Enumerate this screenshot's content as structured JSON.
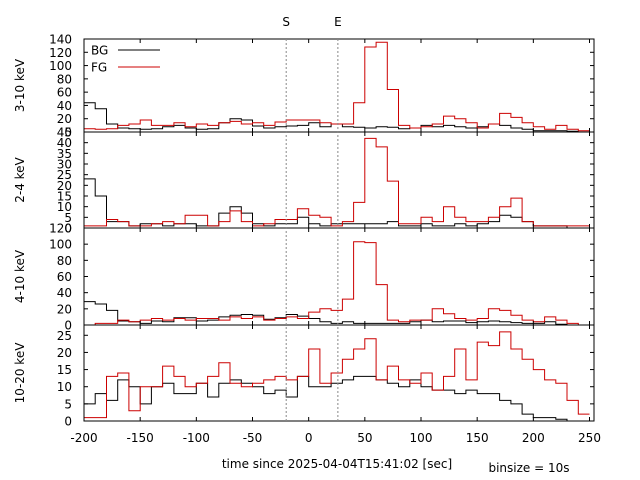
{
  "chart_data": {
    "type": "line",
    "style": "step",
    "shared_x": {
      "label": "time since 2025-04-04T15:41:02 [sec]",
      "ticks": [
        -200,
        -150,
        -100,
        -50,
        0,
        50,
        100,
        150,
        200,
        250
      ],
      "xlim": [
        -200,
        254
      ],
      "grid": false
    },
    "binsize_label": "binsize = 10s",
    "markers": [
      {
        "label": "S",
        "x": -20
      },
      {
        "label": "E",
        "x": 26
      }
    ],
    "legend": {
      "placement": "top-left",
      "entries": [
        "BG",
        "FG"
      ]
    },
    "colors": {
      "BG": "#000000",
      "FG": "#cc0000"
    },
    "panels": [
      {
        "ylabel": "3-10 keV",
        "ylim": [
          0,
          140
        ],
        "yticks": [
          0,
          20,
          40,
          60,
          80,
          100,
          120,
          140
        ],
        "x": [
          -200,
          -190,
          -180,
          -170,
          -160,
          -150,
          -140,
          -130,
          -120,
          -110,
          -100,
          -90,
          -80,
          -70,
          -60,
          -50,
          -40,
          -30,
          -20,
          -10,
          0,
          10,
          20,
          30,
          40,
          50,
          60,
          70,
          80,
          90,
          100,
          110,
          120,
          130,
          140,
          150,
          160,
          170,
          180,
          190,
          200,
          210,
          220,
          230,
          240
        ],
        "series": [
          {
            "name": "BG",
            "values": [
              44,
              35,
              12,
              6,
              5,
              4,
              5,
              8,
              10,
              6,
              4,
              5,
              14,
              20,
              18,
              9,
              6,
              8,
              9,
              10,
              14,
              8,
              12,
              8,
              7,
              6,
              8,
              7,
              5,
              6,
              10,
              8,
              10,
              8,
              6,
              8,
              12,
              10,
              6,
              4,
              2,
              2,
              2,
              1,
              0
            ]
          },
          {
            "name": "FG",
            "values": [
              5,
              4,
              5,
              10,
              12,
              18,
              10,
              10,
              14,
              8,
              12,
              10,
              14,
              16,
              12,
              14,
              10,
              15,
              18,
              18,
              18,
              14,
              12,
              12,
              44,
              128,
              135,
              64,
              10,
              6,
              8,
              12,
              24,
              20,
              14,
              6,
              12,
              28,
              22,
              14,
              8,
              4,
              10,
              4,
              2
            ]
          }
        ]
      },
      {
        "ylabel": "2-4 keV",
        "ylim": [
          0,
          45
        ],
        "yticks": [
          0,
          5,
          10,
          15,
          20,
          25,
          30,
          35,
          40,
          45
        ],
        "x": [
          -200,
          -190,
          -180,
          -170,
          -160,
          -150,
          -140,
          -130,
          -120,
          -110,
          -100,
          -90,
          -80,
          -70,
          -60,
          -50,
          -40,
          -30,
          -20,
          -10,
          0,
          10,
          20,
          30,
          40,
          50,
          60,
          70,
          80,
          90,
          100,
          110,
          120,
          130,
          140,
          150,
          160,
          170,
          180,
          190,
          200,
          210,
          220,
          230,
          240
        ],
        "series": [
          {
            "name": "BG",
            "values": [
              23,
              15,
              3,
              3,
              1,
              2,
              2,
              1,
              2,
              2,
              1,
              1,
              7,
              10,
              7,
              2,
              1,
              2,
              2,
              5,
              2,
              1,
              2,
              2,
              2,
              2,
              2,
              3,
              1,
              1,
              2,
              1,
              1,
              2,
              1,
              2,
              3,
              6,
              5,
              3,
              1,
              1,
              1,
              0,
              0
            ]
          },
          {
            "name": "FG",
            "values": [
              1,
              1,
              4,
              3,
              1,
              1,
              2,
              3,
              2,
              6,
              6,
              1,
              3,
              8,
              3,
              1,
              2,
              4,
              4,
              9,
              6,
              5,
              1,
              3,
              12,
              42,
              38,
              22,
              2,
              2,
              5,
              3,
              10,
              5,
              3,
              3,
              5,
              10,
              14,
              3,
              1,
              1,
              1,
              1,
              1
            ]
          }
        ]
      },
      {
        "ylabel": "4-10 keV",
        "ylim": [
          0,
          120
        ],
        "yticks": [
          0,
          20,
          40,
          60,
          80,
          100,
          120
        ],
        "x": [
          -200,
          -190,
          -180,
          -170,
          -160,
          -150,
          -140,
          -130,
          -120,
          -110,
          -100,
          -90,
          -80,
          -70,
          -60,
          -50,
          -40,
          -30,
          -20,
          -10,
          0,
          10,
          20,
          30,
          40,
          50,
          60,
          70,
          80,
          90,
          100,
          110,
          120,
          130,
          140,
          150,
          160,
          170,
          180,
          190,
          200,
          210,
          220,
          230,
          240
        ],
        "series": [
          {
            "name": "BG",
            "values": [
              29,
              26,
              18,
              5,
              4,
              2,
              5,
              4,
              9,
              9,
              5,
              6,
              10,
              12,
              13,
              12,
              7,
              9,
              13,
              11,
              8,
              4,
              2,
              4,
              2,
              2,
              2,
              2,
              2,
              4,
              6,
              4,
              5,
              5,
              3,
              4,
              5,
              4,
              3,
              2,
              2,
              4,
              1,
              0,
              0
            ]
          },
          {
            "name": "FG",
            "values": [
              0,
              2,
              2,
              6,
              4,
              6,
              8,
              6,
              8,
              6,
              8,
              8,
              6,
              10,
              8,
              10,
              6,
              8,
              10,
              8,
              16,
              20,
              18,
              32,
              103,
              102,
              50,
              6,
              4,
              6,
              6,
              20,
              14,
              8,
              6,
              8,
              20,
              18,
              12,
              6,
              4,
              10,
              6,
              2,
              0
            ]
          }
        ]
      },
      {
        "ylabel": "10-20 keV",
        "ylim": [
          0,
          28
        ],
        "yticks": [
          0,
          5,
          10,
          15,
          20,
          25
        ],
        "x": [
          -200,
          -190,
          -180,
          -170,
          -160,
          -150,
          -140,
          -130,
          -120,
          -110,
          -100,
          -90,
          -80,
          -70,
          -60,
          -50,
          -40,
          -30,
          -20,
          -10,
          0,
          10,
          20,
          30,
          40,
          50,
          60,
          70,
          80,
          90,
          100,
          110,
          120,
          130,
          140,
          150,
          160,
          170,
          180,
          190,
          200,
          210,
          220,
          230,
          240
        ],
        "series": [
          {
            "name": "BG",
            "values": [
              5,
              8,
              6,
              12,
              10,
              5,
              10,
              11,
              8,
              8,
              11,
              7,
              11,
              12,
              11,
              10,
              8,
              9,
              7,
              13,
              10,
              10,
              11,
              12,
              13,
              13,
              12,
              11,
              10,
              12,
              10,
              9,
              9,
              8,
              9,
              8,
              8,
              6,
              5,
              2,
              1,
              1,
              0.5,
              0,
              0
            ]
          },
          {
            "name": "FG",
            "values": [
              1,
              1,
              13,
              14,
              3,
              10,
              10,
              16,
              13,
              10,
              11,
              13,
              17,
              11,
              10,
              11,
              12,
              13,
              12,
              13,
              21,
              11,
              14,
              18,
              21,
              24,
              12,
              16,
              12,
              11,
              14,
              9,
              13,
              21,
              12,
              23,
              22,
              26,
              21,
              18,
              15,
              12,
              11,
              6,
              2
            ]
          }
        ]
      }
    ]
  }
}
